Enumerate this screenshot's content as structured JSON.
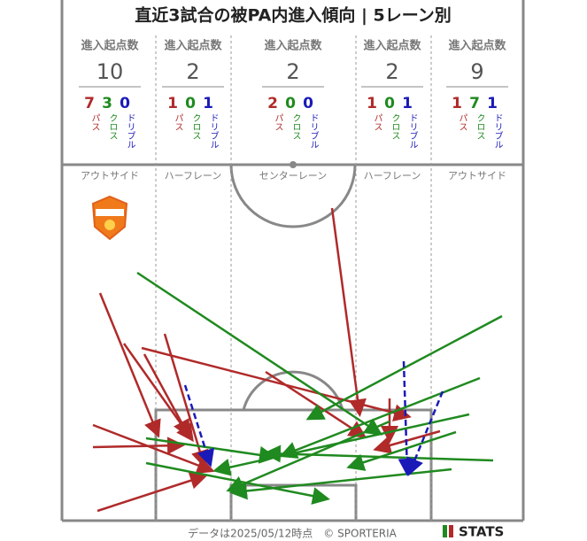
{
  "title": "直近3試合の被PA内進入傾向 | 5レーン別",
  "lanes": [
    {
      "header": "進入起点数",
      "total": "10",
      "pass": "7",
      "cross": "3",
      "dribble": "0",
      "pass_label": "パス",
      "cross_label": "クロス",
      "dribble_label": "ドリブル",
      "name": "アウトサイド"
    },
    {
      "header": "進入起点数",
      "total": "2",
      "pass": "1",
      "cross": "0",
      "dribble": "1",
      "pass_label": "パス",
      "cross_label": "クロス",
      "dribble_label": "ドリブル",
      "name": "ハーフレーン"
    },
    {
      "header": "進入起点数",
      "total": "2",
      "pass": "2",
      "cross": "0",
      "dribble": "0",
      "pass_label": "パス",
      "cross_label": "クロス",
      "dribble_label": "ドリブル",
      "name": "センターレーン"
    },
    {
      "header": "進入起点数",
      "total": "2",
      "pass": "1",
      "cross": "0",
      "dribble": "1",
      "pass_label": "パス",
      "cross_label": "クロス",
      "dribble_label": "ドリブル",
      "name": "ハーフレーン"
    },
    {
      "header": "進入起点数",
      "total": "9",
      "pass": "1",
      "cross": "7",
      "dribble": "1",
      "pass_label": "パス",
      "cross_label": "クロス",
      "dribble_label": "ドリブル",
      "name": "アウトサイド"
    }
  ],
  "footer": {
    "note": "データは2025/05/12時点　© SPORTERIA",
    "brand": "STATS"
  }
}
